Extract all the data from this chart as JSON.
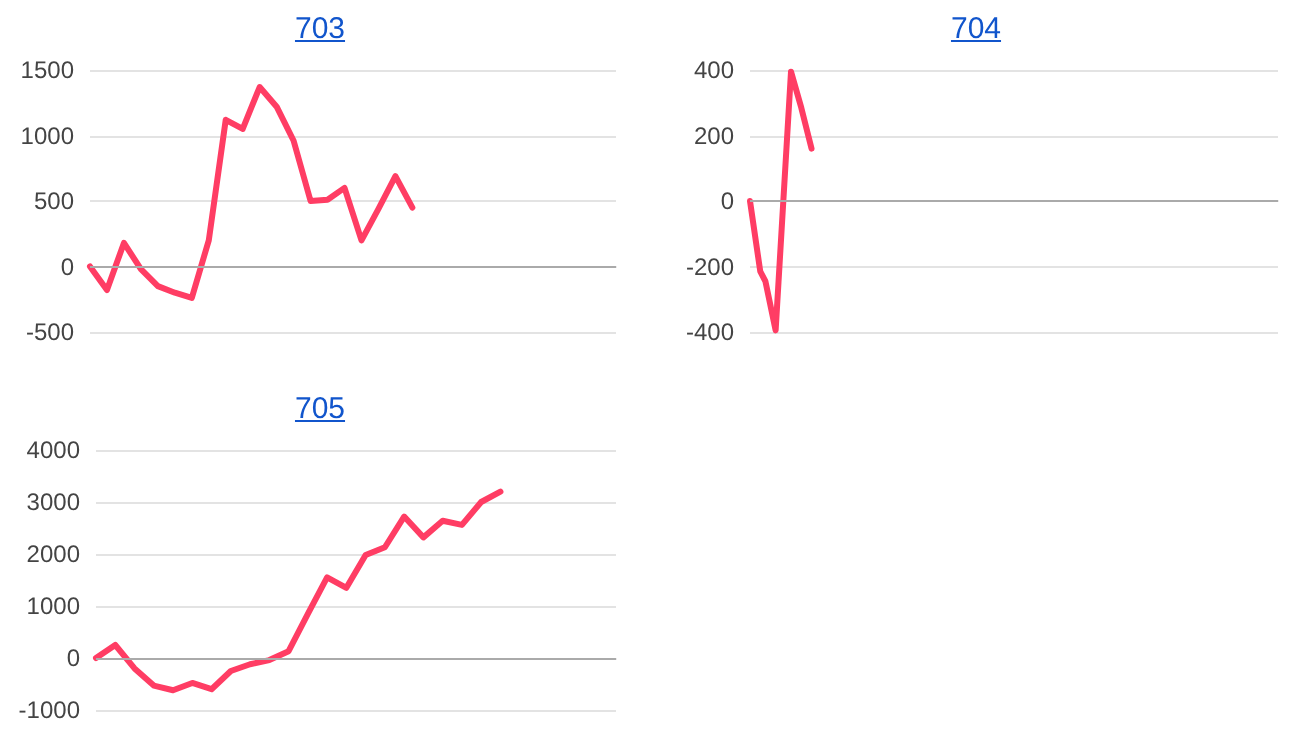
{
  "chart_data": [
    {
      "type": "line",
      "title": "703",
      "categories": [
        null,
        null,
        null,
        null,
        null,
        null,
        null,
        null,
        null,
        null,
        null,
        null,
        null,
        null,
        null,
        null,
        null,
        null,
        null,
        null,
        null,
        null,
        null,
        null,
        null,
        null,
        null,
        null,
        null,
        null,
        null,
        null
      ],
      "series": [
        {
          "color": "#ff3d64",
          "values": [
            0,
            -180,
            180,
            -20,
            -150,
            -200,
            -240,
            200,
            1120,
            1050,
            1370,
            1220,
            960,
            500,
            510,
            600,
            200,
            440,
            690,
            450,
            null,
            null,
            null,
            null,
            null,
            null,
            null,
            null,
            null,
            null,
            null,
            null
          ]
        }
      ],
      "ylim": [
        -500,
        1500
      ],
      "yticks": [
        -500,
        0,
        500,
        1000,
        1500
      ],
      "grid": "y",
      "tick_labels": "y",
      "marker": "none",
      "line_style": "solid"
    },
    {
      "type": "line",
      "title": "704",
      "categories": [
        null,
        null,
        null,
        null,
        null,
        null,
        null,
        null,
        null,
        null,
        null,
        null,
        null,
        null,
        null,
        null,
        null,
        null,
        null,
        null,
        null,
        null,
        null,
        null,
        null,
        null,
        null,
        null,
        null,
        null,
        null,
        null,
        null,
        null,
        null,
        null,
        null,
        null,
        null,
        null,
        null,
        null,
        null,
        null,
        null,
        null,
        null,
        null,
        null,
        null,
        null,
        null,
        null,
        null,
        null,
        null,
        null,
        null,
        null,
        null,
        null,
        null,
        null,
        null,
        null,
        null,
        null,
        null,
        null,
        null,
        null,
        null,
        null,
        null,
        null,
        null,
        null,
        null,
        null,
        null,
        null,
        null,
        null,
        null,
        null,
        null,
        null,
        null,
        null,
        null,
        null,
        null,
        null,
        null,
        null,
        null,
        null,
        null,
        null,
        null,
        null,
        null,
        null,
        null
      ],
      "series": [
        {
          "color": "#ff3d64",
          "values": [
            0,
            null,
            -215,
            -245,
            null,
            -395,
            null,
            null,
            395,
            null,
            285,
            null,
            160,
            null,
            null,
            null,
            null,
            null,
            null,
            null,
            null,
            null,
            null,
            null,
            null,
            null,
            null,
            null,
            null,
            null,
            null,
            null,
            null,
            null,
            null,
            null,
            null,
            null,
            null,
            null,
            null,
            null,
            null,
            null,
            null,
            null,
            null,
            null,
            null,
            null,
            null,
            null,
            null,
            null,
            null,
            null,
            null,
            null,
            null,
            null,
            null,
            null,
            null,
            null,
            null,
            null,
            null,
            null,
            null,
            null,
            null,
            null,
            null,
            null,
            null,
            null,
            null,
            null,
            null,
            null,
            null,
            null,
            null,
            null,
            null,
            null,
            null,
            null,
            null,
            null,
            null,
            null,
            null,
            null,
            null,
            null,
            null,
            null,
            null,
            null,
            null,
            null,
            null,
            null
          ]
        }
      ],
      "ylim": [
        -400,
        400
      ],
      "yticks": [
        -400,
        -200,
        0,
        200,
        400
      ],
      "grid": "y",
      "tick_labels": "y",
      "marker": "none",
      "line_style": "solid"
    },
    {
      "type": "line",
      "title": "705",
      "categories": [
        null,
        null,
        null,
        null,
        null,
        null,
        null,
        null,
        null,
        null,
        null,
        null,
        null,
        null,
        null,
        null,
        null,
        null,
        null,
        null,
        null,
        null,
        null,
        null,
        null,
        null,
        null,
        null
      ],
      "series": [
        {
          "color": "#ff3d64",
          "values": [
            0,
            250,
            -200,
            -530,
            -620,
            -480,
            -600,
            -250,
            -120,
            -40,
            130,
            850,
            1550,
            1350,
            1980,
            2130,
            2720,
            2320,
            2640,
            2560,
            3000,
            3200,
            null,
            null,
            null,
            null,
            null,
            null
          ]
        }
      ],
      "ylim": [
        -1000,
        4000
      ],
      "yticks": [
        -1000,
        0,
        1000,
        2000,
        3000,
        4000
      ],
      "grid": "y",
      "tick_labels": "y",
      "marker": "none",
      "line_style": "solid"
    }
  ]
}
